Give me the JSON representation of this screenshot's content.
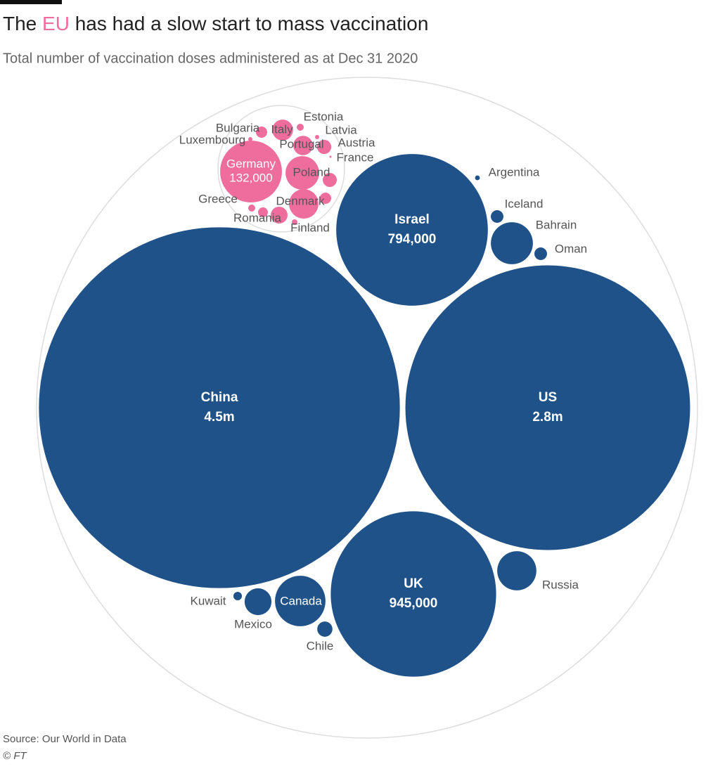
{
  "chart_data": {
    "type": "bubble",
    "title_parts": [
      "The ",
      "EU",
      " has had a slow start to mass vaccination"
    ],
    "subtitle": "Total number of vaccination doses administered as at Dec 31 2020",
    "source": "Source: Our World in Data",
    "credit": "© FT",
    "series": [
      {
        "color": "#1f5289",
        "categories": [
          "China",
          "US",
          "UK",
          "Israel",
          "Canada",
          "Russia",
          "Bahrain",
          "Mexico",
          "Chile",
          "Kuwait",
          "Iceland",
          "Oman",
          "Argentina"
        ],
        "values": [
          4500000,
          2800000,
          945000,
          794000,
          88000,
          53000,
          61000,
          25000,
          8000,
          2500,
          5500,
          5500,
          800
        ],
        "value_labels": [
          "4.5m",
          "2.8m",
          "945,000",
          "794,000",
          null,
          null,
          null,
          null,
          null,
          null,
          null,
          null,
          null
        ]
      },
      {
        "color": "#ef6d9c",
        "categories": [
          "Germany",
          "Poland",
          "Denmark",
          "Italy",
          "Portugal",
          "Austria",
          "Estonia",
          "Latvia",
          "France",
          "Bulgaria",
          "Luxembourg",
          "Greece",
          "Romania",
          "Finland",
          null,
          null,
          null
        ],
        "values": [
          132000,
          39000,
          30000,
          15000,
          13000,
          7000,
          1700,
          600,
          150,
          4400,
          600,
          1700,
          3300,
          1100,
          6800,
          4400,
          9800
        ],
        "value_labels": [
          "132,000",
          null,
          null,
          null,
          null,
          null,
          null,
          null,
          null,
          null,
          null,
          null,
          null,
          null,
          null,
          null,
          null
        ]
      }
    ]
  }
}
